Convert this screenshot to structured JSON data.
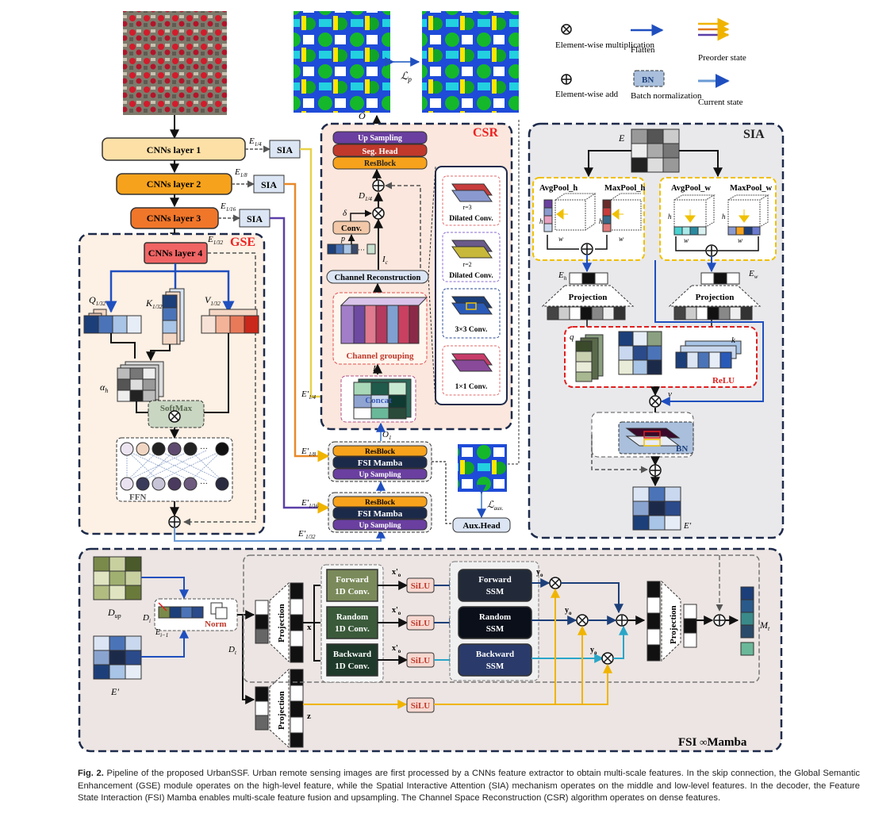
{
  "encoder": {
    "layer1": "CNNs layer 1",
    "layer2": "CNNs layer 2",
    "layer3": "CNNs layer 3",
    "layer4": "CNNs layer 4",
    "sia": "SIA"
  },
  "gse": {
    "title": "GSE",
    "softmax": "SoftMax",
    "ffn": "FFN",
    "alpha": "α",
    "alpha_sub": "h",
    "q": "Q",
    "k": "K",
    "v": "V",
    "frac": "1/32"
  },
  "csr": {
    "title": "CSR",
    "up_sampling": "Up Sampling",
    "seg_head": "Seg. Head",
    "resblock": "ResBlock",
    "conv": "Conv.",
    "channel_reconstruction": "Channel Reconstruction",
    "channel_grouping": "Channel grouping",
    "concat": "Concat",
    "dilated3": "Dilated Conv.",
    "r3": "r=3",
    "dilated2": "Dilated Conv.",
    "r2": "r=2",
    "conv3": "3×3 Conv.",
    "conv1": "1×1 Conv."
  },
  "decoder": {
    "resblock": "ResBlock",
    "fsi_mamba": "FSI Mamba",
    "up_sampling": "Up Sampling",
    "aux_head": "Aux.Head"
  },
  "legend": {
    "mult": "Element-wise multiplication",
    "add": "Element-wise add",
    "flatten": "Flatten",
    "bn": "BN",
    "bn_label": "Batch normalization",
    "preorder": "Preorder state",
    "current": "Current state"
  },
  "sia": {
    "title": "SIA",
    "avgpool_h": "AvgPool_h",
    "maxpool_h": "MaxPool_h",
    "avgpool_w": "AvgPool_w",
    "maxpool_w": "MaxPool_w",
    "projection": "Projection",
    "relu": "ReLU",
    "bn": "BN"
  },
  "fsi": {
    "title": "FSI",
    "title_suffix": "Mamba",
    "forward_conv": "Forward 1D Conv.",
    "random_conv": "Random 1D Conv.",
    "backward_conv": "Backward 1D Conv.",
    "silu": "SiLU",
    "forward_ssm": "Forward SSM",
    "random_ssm": "Random SSM",
    "backward_ssm": "Backward SSM",
    "projection": "Projection",
    "norm": "Norm"
  },
  "caption": {
    "label": "Fig. 2.",
    "text": "Pipeline of the proposed UrbanSSF. Urban remote sensing images are first processed by a CNNs feature extractor to obtain multi-scale features. In the skip connection, the Global Semantic Enhancement (GSE) module operates on the high-level feature, while the Spatial Interactive Attention (SIA) mechanism operates on the middle and low-level features. In the decoder, the Feature State Interaction (FSI) Mamba enables multi-scale feature fusion and upsampling. The Channel Space Reconstruction (CSR) algorithm operates on dense features."
  }
}
